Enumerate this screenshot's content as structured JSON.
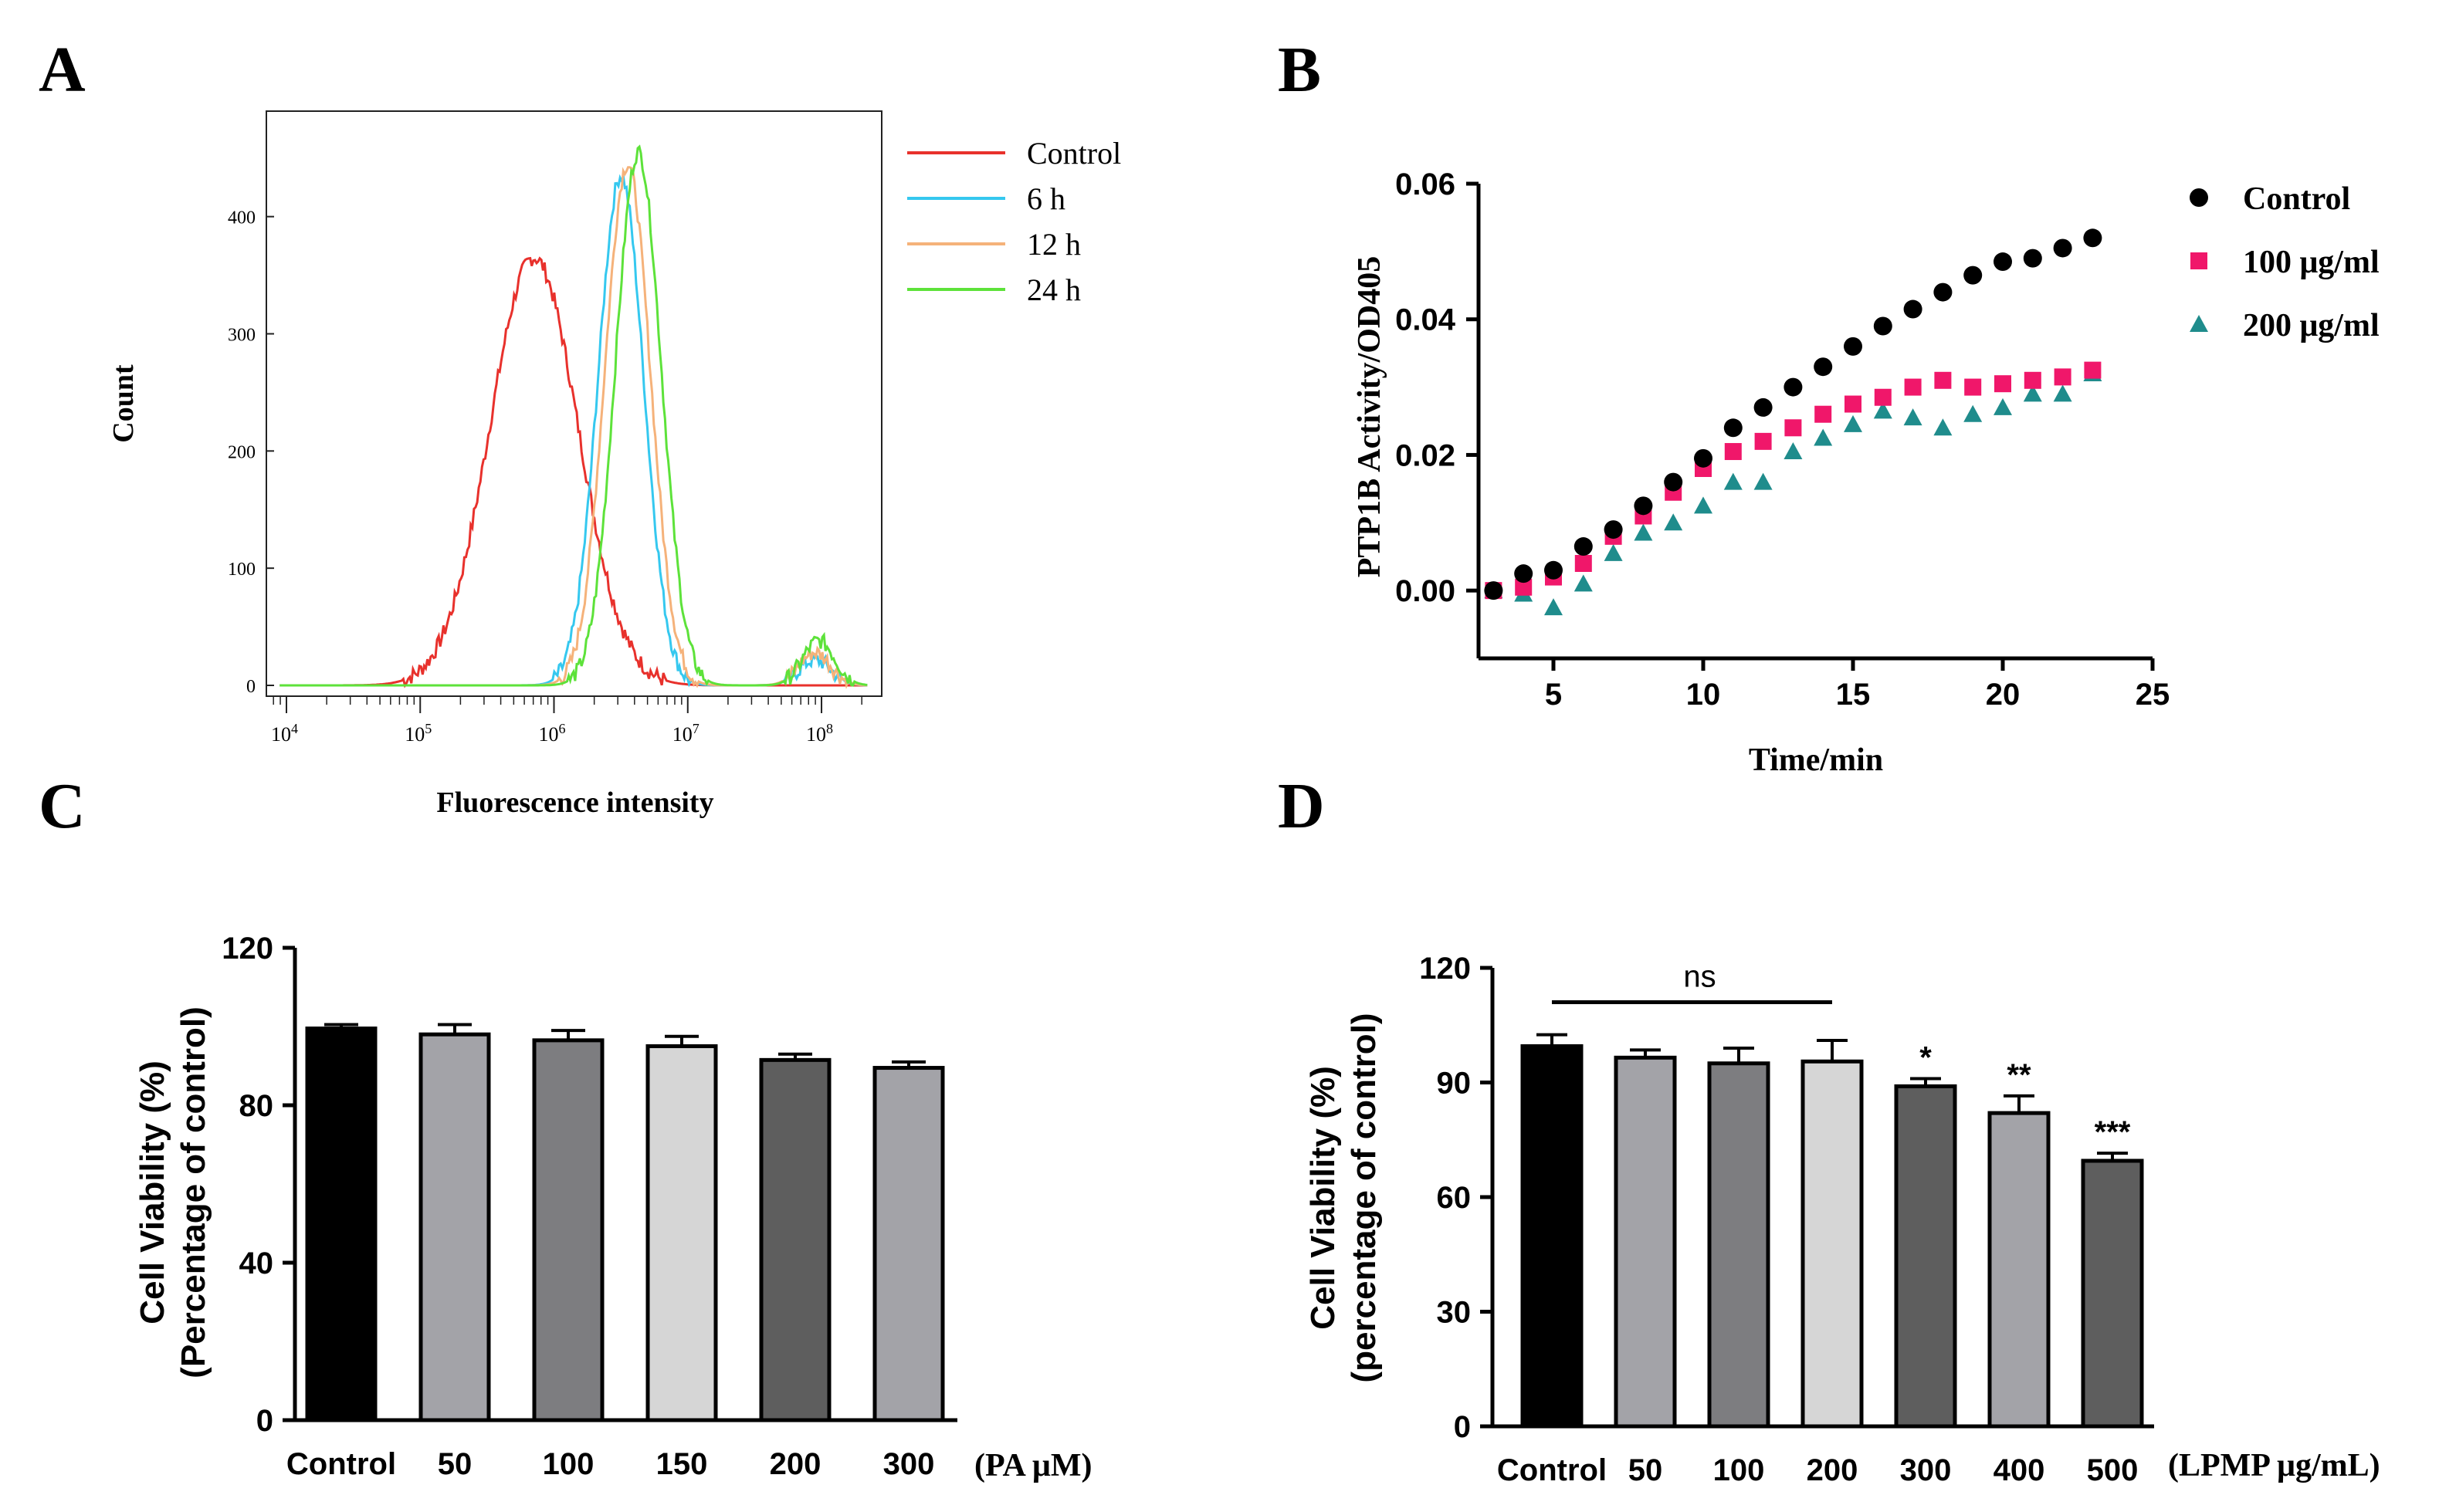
{
  "panels": {
    "A": {
      "label": "A"
    },
    "B": {
      "label": "B"
    },
    "C": {
      "label": "C"
    },
    "D": {
      "label": "D"
    }
  },
  "colors": {
    "control_red": "#e8312c",
    "h6_cyan": "#35c8ef",
    "h12_orange": "#f5b27a",
    "h24_green": "#5de23a",
    "black": "#000000",
    "magenta": "#f0176a",
    "teal": "#1f8c8c",
    "bar_black": "#000000",
    "bar_gray1": "#a3a3a8",
    "bar_gray2": "#7d7d80",
    "bar_light": "#d6d6d6",
    "bar_dark": "#5e5e5e"
  },
  "chart_data": [
    {
      "panel": "A",
      "type": "line",
      "xlabel": "Fluorescence intensity",
      "ylabel": "Count",
      "x_scale": "log10",
      "xlim_log10": [
        3.85,
        8.45
      ],
      "x_tick_base": "10",
      "x_tick_exponents": [
        "4",
        "5",
        "6",
        "7",
        "8"
      ],
      "ylim": [
        0,
        490
      ],
      "y_ticks": [
        "0",
        "100",
        "200",
        "300",
        "400"
      ],
      "legend": [
        "Control",
        "6 h",
        "12 h",
        "24 h"
      ],
      "series": [
        {
          "name": "Control",
          "peak_log10": 5.85,
          "peak_count": 365,
          "spread": 0.33,
          "noise": 14,
          "minor_peak": null
        },
        {
          "name": "6 h",
          "peak_log10": 6.5,
          "peak_count": 435,
          "spread": 0.17,
          "noise": 14,
          "minor_peak": [
            7.95,
            22
          ]
        },
        {
          "name": "12 h",
          "peak_log10": 6.55,
          "peak_count": 445,
          "spread": 0.17,
          "noise": 14,
          "minor_peak": [
            7.95,
            28
          ]
        },
        {
          "name": "24 h",
          "peak_log10": 6.63,
          "peak_count": 455,
          "spread": 0.17,
          "noise": 14,
          "minor_peak": [
            7.98,
            38
          ]
        }
      ]
    },
    {
      "panel": "B",
      "type": "scatter",
      "xlabel": "Time/min",
      "ylabel": "PTP1B Activity/OD405",
      "xlim": [
        2.5,
        25
      ],
      "ylim": [
        -0.01,
        0.06
      ],
      "x_ticks": [
        "5",
        "10",
        "15",
        "20",
        "25"
      ],
      "y_ticks": [
        "0.00",
        "0.02",
        "0.04",
        "0.06"
      ],
      "x": [
        3,
        4,
        5,
        6,
        7,
        8,
        9,
        10,
        11,
        12,
        13,
        14,
        15,
        16,
        17,
        18,
        19,
        20,
        21,
        22,
        23
      ],
      "series": [
        {
          "name": "Control",
          "marker": "circle",
          "values": [
            0.0,
            0.0025,
            0.003,
            0.0065,
            0.009,
            0.0125,
            0.016,
            0.0195,
            0.024,
            0.027,
            0.03,
            0.033,
            0.036,
            0.039,
            0.0415,
            0.044,
            0.0465,
            0.0485,
            0.049,
            0.0505,
            0.052
          ]
        },
        {
          "name": "100 μg/ml",
          "marker": "square",
          "values": [
            0.0,
            0.0005,
            0.002,
            0.004,
            0.008,
            0.011,
            0.0145,
            0.018,
            0.0205,
            0.022,
            0.024,
            0.026,
            0.0275,
            0.0285,
            0.03,
            0.031,
            0.03,
            0.0305,
            0.031,
            0.0315,
            0.0325
          ]
        },
        {
          "name": "200 μg/ml",
          "marker": "triangle",
          "values": [
            0.0,
            -0.0005,
            -0.0025,
            0.001,
            0.0055,
            0.0085,
            0.01,
            0.0125,
            0.016,
            0.016,
            0.0205,
            0.0225,
            0.0245,
            0.0265,
            0.0255,
            0.024,
            0.026,
            0.027,
            0.029,
            0.029,
            0.032
          ]
        }
      ]
    },
    {
      "panel": "C",
      "type": "bar",
      "ylabel_line1": "Cell Viability (%)",
      "ylabel_line2": "(Percentage of control)",
      "unit_label": "(PA μM)",
      "ylim": [
        0,
        120
      ],
      "y_ticks": [
        "0",
        "40",
        "80",
        "120"
      ],
      "categories": [
        "Control",
        "50",
        "100",
        "150",
        "200",
        "300"
      ],
      "values": [
        99.5,
        98,
        96.5,
        95,
        91.5,
        89.5
      ],
      "errors": [
        1.0,
        2.5,
        2.5,
        2.5,
        1.5,
        1.5
      ],
      "fills": [
        "bar_black",
        "bar_gray1",
        "bar_gray2",
        "bar_light",
        "bar_dark",
        "bar_gray1"
      ]
    },
    {
      "panel": "D",
      "type": "bar",
      "ylabel_line1": "Cell Viability (%)",
      "ylabel_line2": "(percentage of control)",
      "unit_label": "(LPMP μg/mL)",
      "ylim": [
        0,
        120
      ],
      "y_ticks": [
        "0",
        "30",
        "60",
        "90",
        "120"
      ],
      "categories": [
        "Control",
        "50",
        "100",
        "200",
        "300",
        "400",
        "500"
      ],
      "values": [
        99.5,
        96.5,
        95,
        95.5,
        89,
        82,
        69.5
      ],
      "errors": [
        3.0,
        2.0,
        4.0,
        5.5,
        2.0,
        4.5,
        2.0
      ],
      "fills": [
        "bar_black",
        "bar_gray1",
        "bar_gray2",
        "bar_light",
        "bar_dark",
        "bar_gray1",
        "bar_dark"
      ],
      "significance": [
        "",
        "",
        "",
        "",
        "*",
        "**",
        "***"
      ],
      "bracket": {
        "label": "ns",
        "from_category": 0,
        "to_category": 3
      }
    }
  ]
}
